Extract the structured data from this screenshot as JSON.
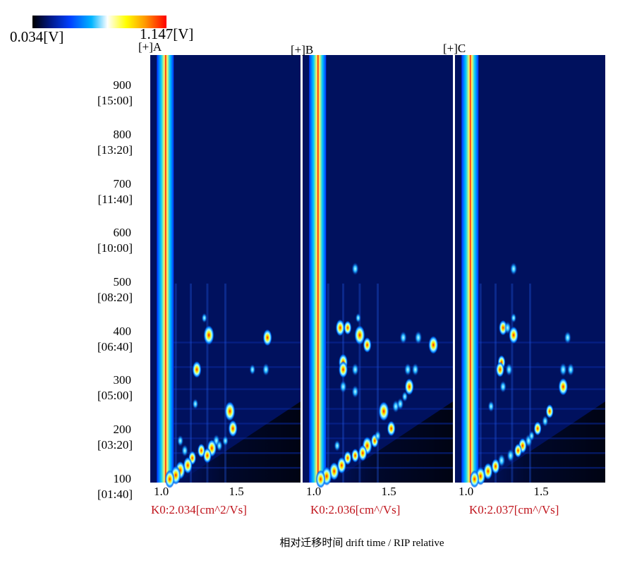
{
  "colorbar": {
    "min_label": "0.034[V]",
    "max_label": "1.147[V]",
    "stops": [
      "#000000",
      "#001a8c",
      "#0040ff",
      "#00b4ff",
      "#ffffff",
      "#ffff00",
      "#ff9900",
      "#ff0000"
    ]
  },
  "colors": {
    "background": "#00115e",
    "rip_line": "#ff1a00",
    "annotation_text": "#c0141c"
  },
  "chart_data": {
    "type": "heatmap",
    "title": "",
    "xlabel": "相对迁移时间 drift time / RIP relative",
    "ylabel": "",
    "xlim": [
      0.95,
      1.95
    ],
    "ylim": [
      95,
      965
    ],
    "x_tick_labels": [
      "1.0",
      "1.5"
    ],
    "x_ticks": [
      1.0,
      1.5
    ],
    "y_ticks": [
      {
        "value": 900,
        "label": "900",
        "time": "[15:00]"
      },
      {
        "value": 800,
        "label": "800",
        "time": "[13:20]"
      },
      {
        "value": 700,
        "label": "700",
        "time": "[11:40]"
      },
      {
        "value": 600,
        "label": "600",
        "time": "[10:00]"
      },
      {
        "value": 500,
        "label": "500",
        "time": "[08:20]"
      },
      {
        "value": 400,
        "label": "400",
        "time": "[06:40]"
      },
      {
        "value": 300,
        "label": "300",
        "time": "[05:00]"
      },
      {
        "value": 200,
        "label": "200",
        "time": "[03:20]"
      },
      {
        "value": 100,
        "label": "100",
        "time": "[01:40]"
      }
    ],
    "colorscale_range": [
      0.034,
      1.147
    ],
    "rip_drift_time": 1.05,
    "panels": [
      {
        "name": "[+]A",
        "k0": "K0:2.034[cm^2/Vs]",
        "spots": [
          {
            "x": 1.34,
            "y": 395,
            "v": 1.0
          },
          {
            "x": 1.31,
            "y": 430,
            "v": 0.3
          },
          {
            "x": 1.73,
            "y": 390,
            "v": 0.8
          },
          {
            "x": 1.26,
            "y": 325,
            "v": 0.8
          },
          {
            "x": 1.72,
            "y": 325,
            "v": 0.5
          },
          {
            "x": 1.63,
            "y": 325,
            "v": 0.35
          },
          {
            "x": 1.48,
            "y": 240,
            "v": 1.0
          },
          {
            "x": 1.5,
            "y": 205,
            "v": 0.8
          },
          {
            "x": 1.39,
            "y": 180,
            "v": 0.5
          },
          {
            "x": 1.36,
            "y": 165,
            "v": 0.85
          },
          {
            "x": 1.33,
            "y": 150,
            "v": 0.7
          },
          {
            "x": 1.29,
            "y": 160,
            "v": 0.6
          },
          {
            "x": 1.23,
            "y": 145,
            "v": 0.6
          },
          {
            "x": 1.2,
            "y": 130,
            "v": 0.8
          },
          {
            "x": 1.15,
            "y": 120,
            "v": 0.9
          },
          {
            "x": 1.12,
            "y": 110,
            "v": 0.95
          },
          {
            "x": 1.08,
            "y": 102,
            "v": 0.9
          },
          {
            "x": 1.18,
            "y": 160,
            "v": 0.45
          },
          {
            "x": 1.15,
            "y": 180,
            "v": 0.4
          },
          {
            "x": 1.25,
            "y": 255,
            "v": 0.35
          },
          {
            "x": 1.41,
            "y": 170,
            "v": 0.4
          },
          {
            "x": 1.45,
            "y": 180,
            "v": 0.35
          }
        ]
      },
      {
        "name": "[+]B",
        "k0": "K0:2.036[cm^/Vs]",
        "spots": [
          {
            "x": 1.33,
            "y": 395,
            "v": 1.0
          },
          {
            "x": 1.32,
            "y": 430,
            "v": 0.3
          },
          {
            "x": 1.3,
            "y": 530,
            "v": 0.5
          },
          {
            "x": 1.2,
            "y": 410,
            "v": 0.8
          },
          {
            "x": 1.25,
            "y": 410,
            "v": 0.6
          },
          {
            "x": 1.38,
            "y": 375,
            "v": 0.7
          },
          {
            "x": 1.72,
            "y": 390,
            "v": 0.55
          },
          {
            "x": 1.82,
            "y": 375,
            "v": 0.9
          },
          {
            "x": 1.62,
            "y": 390,
            "v": 0.5
          },
          {
            "x": 1.22,
            "y": 340,
            "v": 0.8
          },
          {
            "x": 1.22,
            "y": 325,
            "v": 0.8
          },
          {
            "x": 1.3,
            "y": 325,
            "v": 0.5
          },
          {
            "x": 1.65,
            "y": 325,
            "v": 0.5
          },
          {
            "x": 1.7,
            "y": 325,
            "v": 0.5
          },
          {
            "x": 1.66,
            "y": 290,
            "v": 0.8
          },
          {
            "x": 1.63,
            "y": 270,
            "v": 0.35
          },
          {
            "x": 1.3,
            "y": 280,
            "v": 0.5
          },
          {
            "x": 1.22,
            "y": 290,
            "v": 0.5
          },
          {
            "x": 1.57,
            "y": 250,
            "v": 0.5
          },
          {
            "x": 1.6,
            "y": 255,
            "v": 0.45
          },
          {
            "x": 1.49,
            "y": 240,
            "v": 1.0
          },
          {
            "x": 1.54,
            "y": 205,
            "v": 0.7
          },
          {
            "x": 1.43,
            "y": 180,
            "v": 0.6
          },
          {
            "x": 1.38,
            "y": 170,
            "v": 0.9
          },
          {
            "x": 1.35,
            "y": 155,
            "v": 0.75
          },
          {
            "x": 1.3,
            "y": 150,
            "v": 0.6
          },
          {
            "x": 1.25,
            "y": 145,
            "v": 0.6
          },
          {
            "x": 1.21,
            "y": 130,
            "v": 0.8
          },
          {
            "x": 1.16,
            "y": 118,
            "v": 0.9
          },
          {
            "x": 1.11,
            "y": 108,
            "v": 0.95
          },
          {
            "x": 1.07,
            "y": 102,
            "v": 0.9
          },
          {
            "x": 1.18,
            "y": 170,
            "v": 0.4
          },
          {
            "x": 1.45,
            "y": 190,
            "v": 0.4
          }
        ]
      },
      {
        "name": "[+]C",
        "k0": "K0:2.037[cm^/Vs]",
        "spots": [
          {
            "x": 1.34,
            "y": 530,
            "v": 0.5
          },
          {
            "x": 1.34,
            "y": 395,
            "v": 0.85
          },
          {
            "x": 1.34,
            "y": 430,
            "v": 0.3
          },
          {
            "x": 1.27,
            "y": 410,
            "v": 0.7
          },
          {
            "x": 1.3,
            "y": 410,
            "v": 0.5
          },
          {
            "x": 1.7,
            "y": 390,
            "v": 0.5
          },
          {
            "x": 1.26,
            "y": 340,
            "v": 0.6
          },
          {
            "x": 1.25,
            "y": 325,
            "v": 0.7
          },
          {
            "x": 1.31,
            "y": 325,
            "v": 0.5
          },
          {
            "x": 1.67,
            "y": 325,
            "v": 0.55
          },
          {
            "x": 1.72,
            "y": 325,
            "v": 0.5
          },
          {
            "x": 1.67,
            "y": 290,
            "v": 0.85
          },
          {
            "x": 1.27,
            "y": 290,
            "v": 0.45
          },
          {
            "x": 1.58,
            "y": 240,
            "v": 0.6
          },
          {
            "x": 1.55,
            "y": 220,
            "v": 0.4
          },
          {
            "x": 1.5,
            "y": 205,
            "v": 0.6
          },
          {
            "x": 1.44,
            "y": 180,
            "v": 0.55
          },
          {
            "x": 1.4,
            "y": 170,
            "v": 0.7
          },
          {
            "x": 1.37,
            "y": 160,
            "v": 0.6
          },
          {
            "x": 1.32,
            "y": 150,
            "v": 0.55
          },
          {
            "x": 1.26,
            "y": 140,
            "v": 0.55
          },
          {
            "x": 1.22,
            "y": 128,
            "v": 0.7
          },
          {
            "x": 1.17,
            "y": 118,
            "v": 0.8
          },
          {
            "x": 1.12,
            "y": 108,
            "v": 0.9
          },
          {
            "x": 1.08,
            "y": 102,
            "v": 0.85
          },
          {
            "x": 1.19,
            "y": 250,
            "v": 0.4
          },
          {
            "x": 1.46,
            "y": 190,
            "v": 0.35
          }
        ]
      }
    ]
  }
}
